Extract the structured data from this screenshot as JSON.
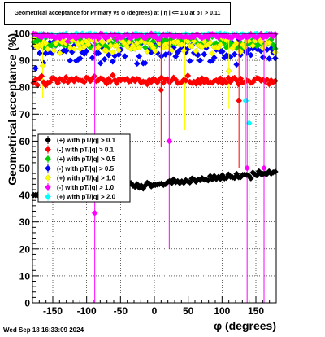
{
  "title": "Geometrical acceptance for Primary vs φ (degrees) at |  η | <= 1.0 at pT > 0.11",
  "footer": "Wed Sep 18 16:33:09 2024",
  "chart_data": {
    "type": "scatter",
    "xlabel": "φ (degrees)",
    "ylabel": "Geometrical acceptance (%)",
    "xlim": [
      -180,
      180
    ],
    "ylim": [
      0,
      100
    ],
    "x_ticks": [
      -150,
      -100,
      -50,
      0,
      50,
      100,
      150
    ],
    "y_ticks": [
      0,
      10,
      20,
      30,
      40,
      50,
      60,
      70,
      80,
      90,
      100
    ],
    "grid": true,
    "legend_position": "left-middle",
    "series": [
      {
        "name": "(+) with pT/|q| > 0.1",
        "color": "#000000",
        "kind": "trend",
        "y_start": 39.5,
        "y_end": 48.5,
        "noise": 1.0,
        "min_y": 40
      },
      {
        "name": "(-) with pT/|q| > 0.1",
        "color": "#ff0000",
        "kind": "flat",
        "y_mean": 82.5,
        "noise": 1.3,
        "outliers": [
          {
            "x": 125,
            "y": 75
          },
          {
            "x": 10,
            "y": 79
          }
        ]
      },
      {
        "name": "(+) with pT/|q| > 0.5",
        "color": "#00cc00",
        "kind": "flat",
        "y_mean": 96.5,
        "noise": 2.0
      },
      {
        "name": "(-) with pT/|q| > 0.5",
        "color": "#0000ff",
        "kind": "flat",
        "y_mean": 93.5,
        "noise": 4.0
      },
      {
        "name": "(+) with pT/|q| > 1.0",
        "color": "#ffff00",
        "kind": "flat",
        "y_mean": 96.0,
        "noise": 3.0,
        "outliers": [
          {
            "x": -165,
            "y": 88
          },
          {
            "x": 45,
            "y": 82
          },
          {
            "x": 110,
            "y": 86
          }
        ]
      },
      {
        "name": "(-) with pT/|q| > 1.0",
        "color": "#ff00ff",
        "kind": "flat",
        "y_mean": 99.0,
        "noise": 0.8,
        "outliers": [
          {
            "x": -88,
            "y": 33.3
          },
          {
            "x": 22,
            "y": 60
          },
          {
            "x": 137,
            "y": 50
          },
          {
            "x": 162,
            "y": 50
          },
          {
            "x": -128,
            "y": 97
          }
        ]
      },
      {
        "name": "(+) with pT/|q| > 2.0",
        "color": "#00ffff",
        "kind": "flat",
        "y_mean": 99.5,
        "noise": 0.4,
        "outliers": [
          {
            "x": 135,
            "y": 75
          },
          {
            "x": 140,
            "y": 66.7
          },
          {
            "x": -162,
            "y": 99
          }
        ]
      }
    ],
    "bin_count": 120
  }
}
